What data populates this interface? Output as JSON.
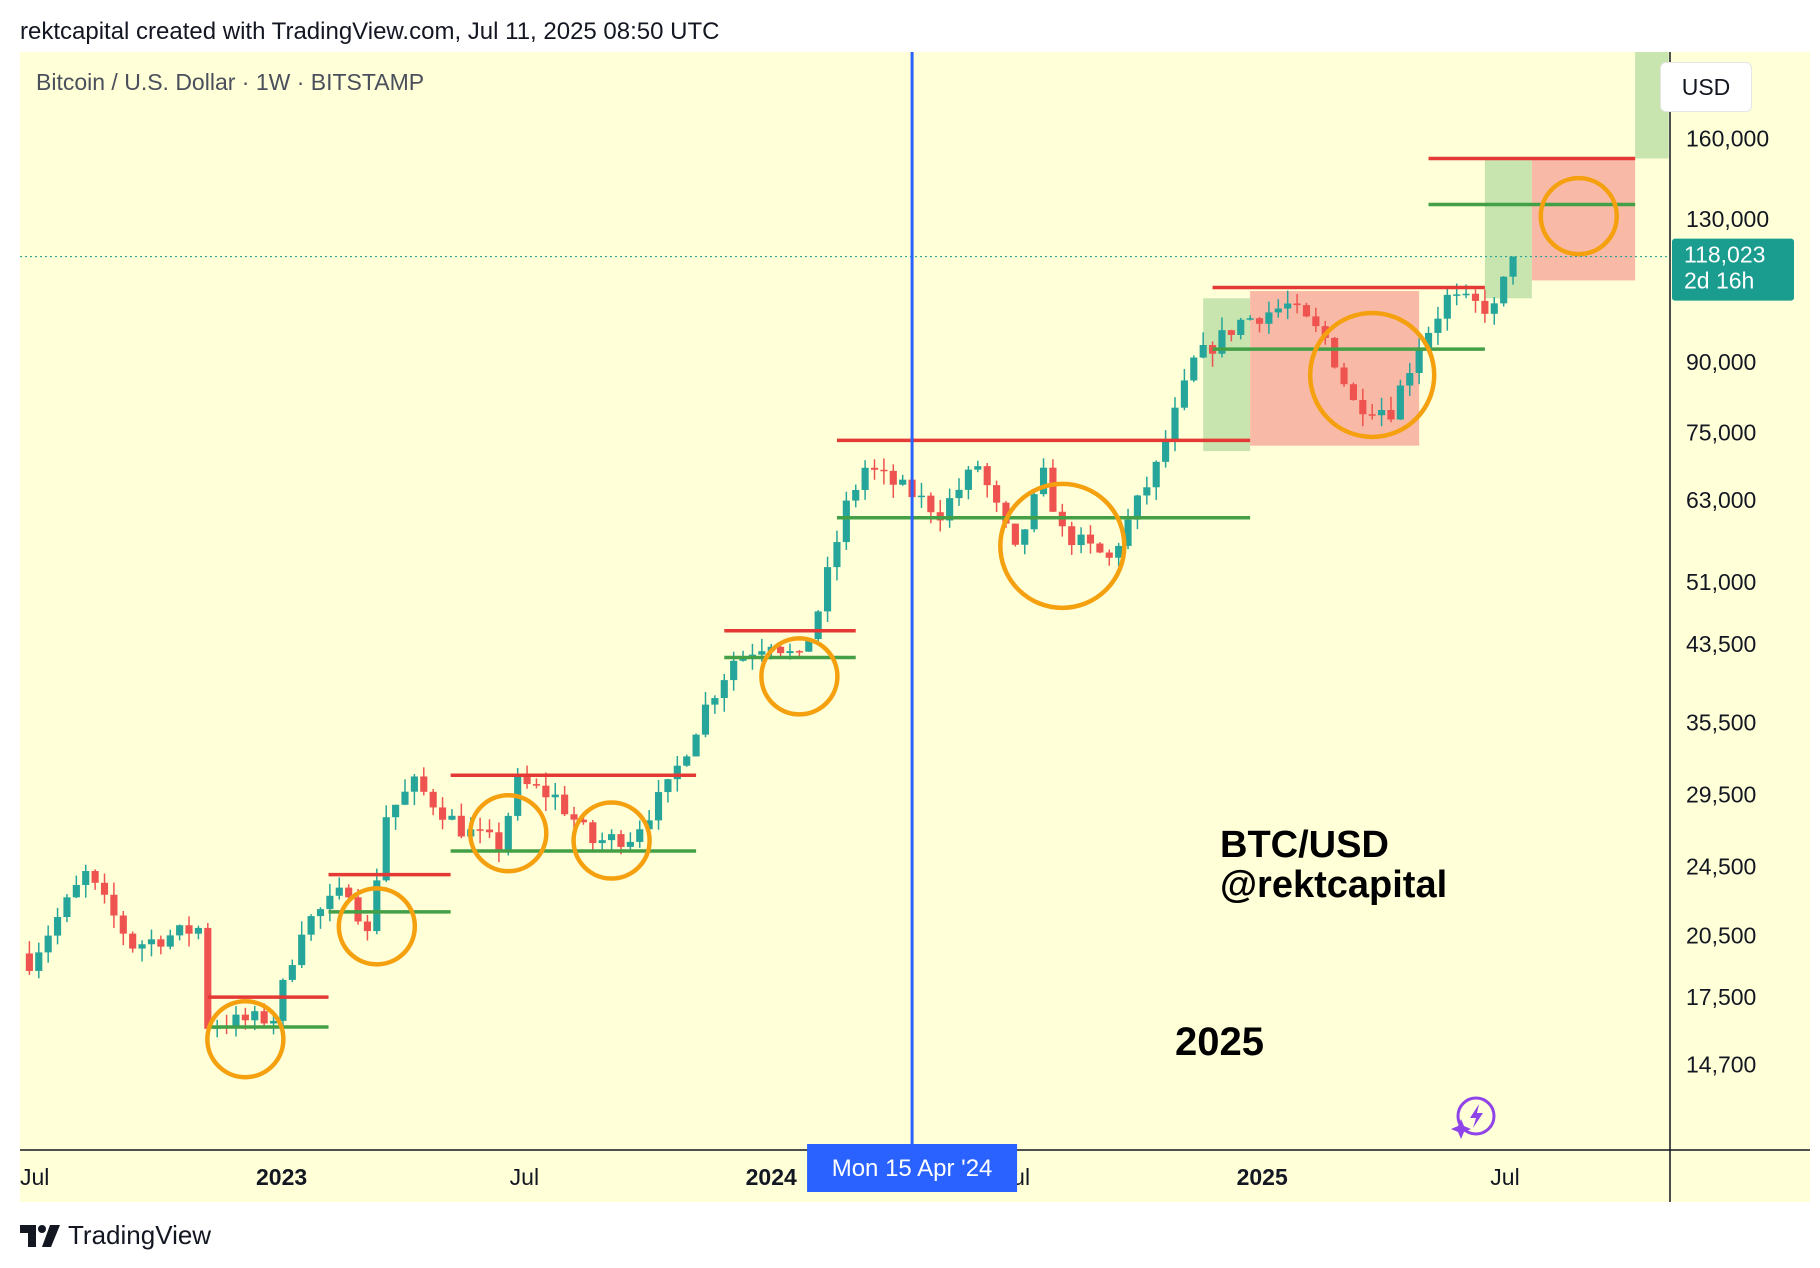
{
  "header": {
    "credit": "rektcapital created with TradingView.com, Jul 11, 2025 08:50 UTC"
  },
  "chart": {
    "symbol_title": "Bitcoin / U.S. Dollar · 1W · BITSTAMP",
    "currency_button": "USD",
    "annotation_pair": "BTC/USD",
    "annotation_author": "@rektcapital",
    "annotation_year": "2025",
    "crosshair_label": "Mon 15 Apr '24",
    "last_price_label": "118,023",
    "last_price_countdown": "2d 16h",
    "colors": {
      "background": "#ffffd8",
      "up": "#26a69a",
      "down": "#ef5350",
      "resistance_line": "#e53935",
      "support_line": "#43a047",
      "circle": "#f5a00f",
      "crosshair": "#2962ff",
      "price_badge": "#1a9c8f",
      "green_zone": "#c5e3ad",
      "red_zone": "#f8b6a3"
    }
  },
  "chart_data": {
    "type": "candlestick",
    "title": "Bitcoin / U.S. Dollar · 1W · BITSTAMP",
    "y_scale": "log",
    "ylim": [
      11800,
      200000
    ],
    "y_ticks": [
      {
        "label": "160,000",
        "value": 160000
      },
      {
        "label": "130,000",
        "value": 130000
      },
      {
        "label": "90,000",
        "value": 90000
      },
      {
        "label": "75,000",
        "value": 75000
      },
      {
        "label": "63,000",
        "value": 63000
      },
      {
        "label": "51,000",
        "value": 51000
      },
      {
        "label": "43,500",
        "value": 43500
      },
      {
        "label": "35,500",
        "value": 35500
      },
      {
        "label": "29,500",
        "value": 29500
      },
      {
        "label": "24,500",
        "value": 24500
      },
      {
        "label": "20,500",
        "value": 20500
      },
      {
        "label": "17,500",
        "value": 17500
      },
      {
        "label": "14,700",
        "value": 14700
      }
    ],
    "x_ticks": [
      {
        "label": "Jul",
        "date": "2022-07-01",
        "bold": false
      },
      {
        "label": "2023",
        "date": "2023-01-01",
        "bold": true
      },
      {
        "label": "Jul",
        "date": "2023-07-01",
        "bold": false
      },
      {
        "label": "2024",
        "date": "2024-01-01",
        "bold": true
      },
      {
        "label": "Jul",
        "date": "2024-07-01",
        "bold": false
      },
      {
        "label": "2025",
        "date": "2025-01-01",
        "bold": true
      },
      {
        "label": "Jul",
        "date": "2025-07-01",
        "bold": false
      }
    ],
    "last_price": 118023,
    "crosshair_date": "2024-04-15",
    "anchors": [
      [
        "2022-06-27",
        19200
      ],
      [
        "2022-08-08",
        24000
      ],
      [
        "2022-09-12",
        20000
      ],
      [
        "2022-10-31",
        20900
      ],
      [
        "2022-11-07",
        16300
      ],
      [
        "2022-12-26",
        16600
      ],
      [
        "2023-01-16",
        21000
      ],
      [
        "2023-02-20",
        23200
      ],
      [
        "2023-03-06",
        20500
      ],
      [
        "2023-03-20",
        28000
      ],
      [
        "2023-04-10",
        30300
      ],
      [
        "2023-05-15",
        27000
      ],
      [
        "2023-06-12",
        25900
      ],
      [
        "2023-06-26",
        30400
      ],
      [
        "2023-07-24",
        29300
      ],
      [
        "2023-08-21",
        26100
      ],
      [
        "2023-09-18",
        26500
      ],
      [
        "2023-10-16",
        30000
      ],
      [
        "2023-11-13",
        37000
      ],
      [
        "2023-12-04",
        41800
      ],
      [
        "2024-01-01",
        44000
      ],
      [
        "2024-01-22",
        41600
      ],
      [
        "2024-02-05",
        47500
      ],
      [
        "2024-02-26",
        62000
      ],
      [
        "2024-03-11",
        68500
      ],
      [
        "2024-04-15",
        64000
      ],
      [
        "2024-05-06",
        61000
      ],
      [
        "2024-06-03",
        69000
      ],
      [
        "2024-07-01",
        55000
      ],
      [
        "2024-07-22",
        67000
      ],
      [
        "2024-08-05",
        58000
      ],
      [
        "2024-09-09",
        54000
      ],
      [
        "2024-09-30",
        62500
      ],
      [
        "2024-10-14",
        68500
      ],
      [
        "2024-11-11",
        90000
      ],
      [
        "2024-12-16",
        100000
      ],
      [
        "2025-01-20",
        104000
      ],
      [
        "2025-02-17",
        95500
      ],
      [
        "2025-03-10",
        81000
      ],
      [
        "2025-04-07",
        79500
      ],
      [
        "2025-04-28",
        94000
      ],
      [
        "2025-05-19",
        106000
      ],
      [
        "2025-06-23",
        103000
      ],
      [
        "2025-07-07",
        118023
      ]
    ],
    "ranges": [
      {
        "from": "2022-11-07",
        "to": "2023-02-05",
        "resistance": 17500,
        "support": 16200
      },
      {
        "from": "2023-02-05",
        "to": "2023-05-07",
        "resistance": 24000,
        "support": 21800
      },
      {
        "from": "2023-05-07",
        "to": "2023-11-06",
        "resistance": 31000,
        "support": 25500
      },
      {
        "from": "2023-11-27",
        "to": "2024-03-04",
        "resistance": 45000,
        "support": 42000
      },
      {
        "from": "2024-02-19",
        "to": "2024-12-23",
        "resistance": 73500,
        "support": 60200
      },
      {
        "from": "2024-11-25",
        "to": "2025-06-16",
        "resistance": 109000,
        "support": 93000
      },
      {
        "from": "2025-05-05",
        "to": "2025-10-06",
        "resistance": 152000,
        "support": 135000
      }
    ],
    "zones": [
      {
        "kind": "green",
        "from": "2024-11-18",
        "to": "2024-12-23",
        "low": 71500,
        "high": 106000
      },
      {
        "kind": "red",
        "from": "2024-12-23",
        "to": "2025-04-28",
        "low": 72500,
        "high": 108000
      },
      {
        "kind": "green",
        "from": "2025-06-16",
        "to": "2025-07-21",
        "low": 106000,
        "high": 152000
      },
      {
        "kind": "red",
        "from": "2025-07-21",
        "to": "2025-10-06",
        "low": 111000,
        "high": 152000
      },
      {
        "kind": "green",
        "from": "2025-10-06",
        "to": "2025-10-31",
        "low": 152000,
        "high": 200000
      }
    ],
    "circles": [
      {
        "date": "2022-12-05",
        "price": 15700,
        "r": 38
      },
      {
        "date": "2023-03-13",
        "price": 21000,
        "r": 38
      },
      {
        "date": "2023-06-19",
        "price": 26700,
        "r": 38
      },
      {
        "date": "2023-09-04",
        "price": 26200,
        "r": 38
      },
      {
        "date": "2024-01-22",
        "price": 40000,
        "r": 38
      },
      {
        "date": "2024-08-05",
        "price": 56000,
        "r": 62
      },
      {
        "date": "2025-03-24",
        "price": 87000,
        "r": 62
      },
      {
        "date": "2025-08-25",
        "price": 131000,
        "r": 38
      }
    ]
  },
  "footer": {
    "brand": "TradingView"
  }
}
